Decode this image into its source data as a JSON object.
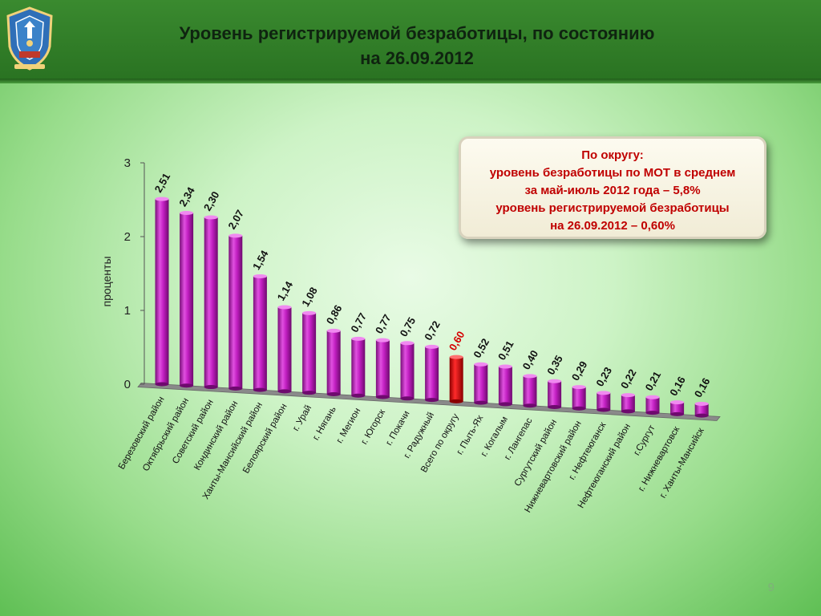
{
  "slide": {
    "title_line1": "Уровень регистрируемой безработицы, по состоянию",
    "title_line2": "на 26.09.2012",
    "page_number": "9"
  },
  "infobox": {
    "line1": "По округу:",
    "line2": "уровень безработицы по МОТ в среднем",
    "line3": "за май-июль 2012 года – 5,8%",
    "line4": "уровень регистрируемой безработицы",
    "line5": "на 26.09.2012  – 0,60%"
  },
  "colors": {
    "bar": "#c21fc2",
    "bar_highlight": "#e00000",
    "header": "#2f7d26"
  },
  "chart_data": {
    "type": "bar",
    "ylabel": "проценты",
    "ylim": [
      0,
      3
    ],
    "yticks": [
      "0",
      "1",
      "2",
      "3"
    ],
    "highlight_index": 12,
    "categories": [
      "Березовский район",
      "Октябрьский район",
      "Советский район",
      "Кондинский район",
      "Ханты-Мансийский район",
      "Белоярский район",
      "г. Урай",
      "г. Нягань",
      "г. Мегион",
      "г. Югорск",
      "г. Покачи",
      "г. Радужный",
      "Всего по округу",
      "г. Пыть-Ях",
      "г. Когалым",
      "г. Лангепас",
      "Сургутский район",
      "Нижневартовский район",
      "г. Нефтеюганск",
      "Нефтеюганский район",
      "г.Сургут",
      "г. Нижневартовск",
      "г. Ханты-Мансийск"
    ],
    "values": [
      2.51,
      2.34,
      2.3,
      2.07,
      1.54,
      1.14,
      1.08,
      0.86,
      0.77,
      0.77,
      0.75,
      0.72,
      0.6,
      0.52,
      0.51,
      0.4,
      0.35,
      0.29,
      0.23,
      0.22,
      0.21,
      0.16,
      0.16
    ],
    "labels": [
      "2,51",
      "2,34",
      "2,30",
      "2,07",
      "1,54",
      "1,14",
      "1,08",
      "0,86",
      "0,77",
      "0,77",
      "0,75",
      "0,72",
      "0,60",
      "0,52",
      "0,51",
      "0,40",
      "0,35",
      "0,29",
      "0,23",
      "0,22",
      "0,21",
      "0,16",
      "0,16"
    ]
  }
}
